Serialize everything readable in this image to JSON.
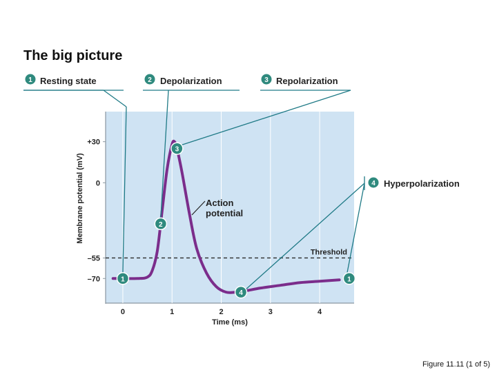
{
  "title": "The big picture",
  "caption": "Figure 11.11 (1 of 5)",
  "phases": [
    {
      "number": "1",
      "label": "Resting state"
    },
    {
      "number": "2",
      "label": "Depolarization"
    },
    {
      "number": "3",
      "label": "Repolarization"
    },
    {
      "number": "4",
      "label": "Hyperpolarization"
    }
  ],
  "annotations": {
    "action_potential_line1": "Action",
    "action_potential_line2": "potential",
    "threshold": "Threshold"
  },
  "colors": {
    "curve": "#7b2d8b",
    "plot_bg": "#cfe3f3",
    "callout": "#1f7a86",
    "marker": "#2f8a7e"
  },
  "chart_data": {
    "type": "line",
    "xlabel": "Time (ms)",
    "ylabel": "Membrane potential (mV)",
    "x_ticks": [
      0,
      1,
      2,
      3,
      4
    ],
    "y_ticks": [
      {
        "value": 30,
        "label": "+30"
      },
      {
        "value": 0,
        "label": "0"
      },
      {
        "value": -55,
        "label": "–55"
      },
      {
        "value": -70,
        "label": "–70"
      }
    ],
    "xlim": [
      -0.35,
      4.7
    ],
    "ylim": [
      -88,
      52
    ],
    "threshold": -55,
    "series": [
      {
        "x": [
          -0.2,
          0.3,
          0.5,
          0.6,
          0.7,
          0.8,
          0.9,
          1.0,
          1.05,
          1.1,
          1.2,
          1.35,
          1.5,
          1.7,
          1.9,
          2.1,
          2.3,
          2.5,
          2.8,
          3.2,
          3.6,
          4.0,
          4.4
        ],
        "y": [
          -70,
          -70,
          -69,
          -64,
          -50,
          -20,
          10,
          28,
          30,
          25,
          8,
          -22,
          -48,
          -66,
          -76,
          -80,
          -80,
          -79,
          -77,
          -75,
          -73,
          -72,
          -71
        ]
      }
    ],
    "phase_markers": [
      {
        "number": "1",
        "x": 0.0,
        "y": -70
      },
      {
        "number": "2",
        "x": 0.77,
        "y": -30
      },
      {
        "number": "3",
        "x": 1.1,
        "y": 25
      },
      {
        "number": "4",
        "x": 2.4,
        "y": -80
      },
      {
        "number": "1",
        "x": 4.6,
        "y": -70
      }
    ]
  }
}
